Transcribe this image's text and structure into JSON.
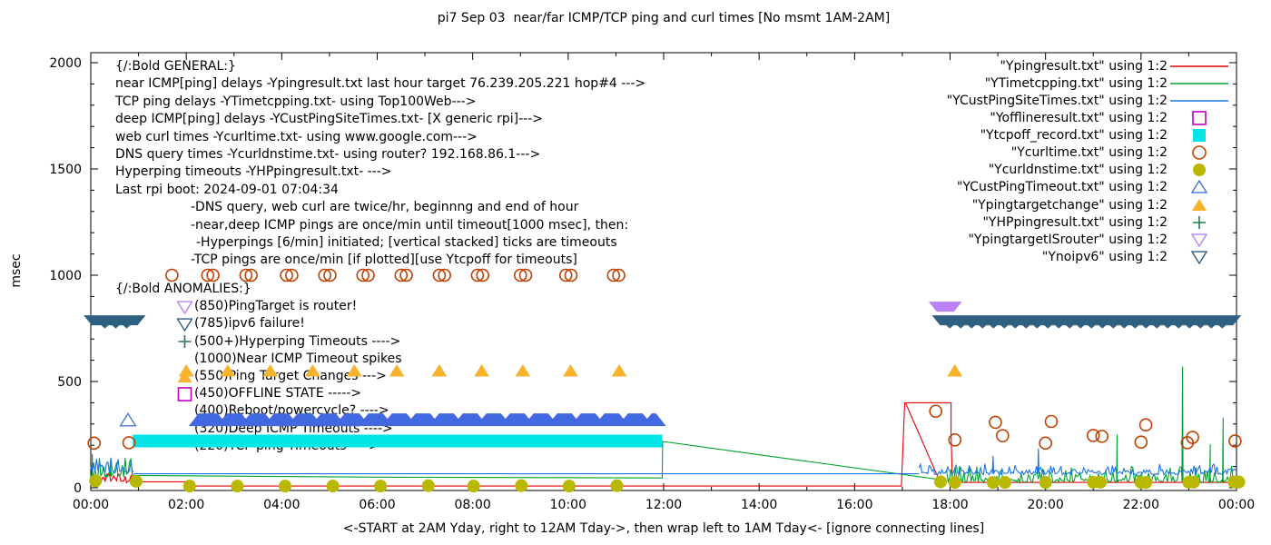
{
  "title": "pi7 Sep 03  near/far ICMP/TCP ping and curl times [No msmt 1AM-2AM]",
  "caption": "<-START at 2AM Yday, right to 12AM Tday->, then wrap left to 1AM Tday<- [ignore connecting lines]",
  "legend": {
    "items": [
      {
        "label": "\"Ypingresult.txt\" using 1:2",
        "swatch": "line",
        "color": "#e60000"
      },
      {
        "label": "\"YTimetcpping.txt\" using 1:2",
        "swatch": "line",
        "color": "#00a330"
      },
      {
        "label": "\"YCustPingSiteTimes.txt\" using 1:2",
        "swatch": "line",
        "color": "#1874e8"
      },
      {
        "label": "\"Yofflineresult.txt\" using 1:2",
        "swatch": "square-open",
        "color": "#bf00bf"
      },
      {
        "label": "\"Ytcpoff_record.txt\" using 1:2",
        "swatch": "square-filled",
        "color": "#00e6e6"
      },
      {
        "label": "\"Ycurltime.txt\" using 1:2",
        "swatch": "circle-open",
        "color": "#c04000"
      },
      {
        "label": "\"Ycurldnstime.txt\" using 1:2",
        "swatch": "circle-filled",
        "color": "#b8b800"
      },
      {
        "label": "\"YCustPingTimeout.txt\" using 1:2",
        "swatch": "tri-up-open",
        "color": "#4878d0"
      },
      {
        "label": "\"Ypingtargetchange\" using 1:2",
        "swatch": "tri-up-filled",
        "color": "#f7b32b"
      },
      {
        "label": "\"YHPpingresult.txt\" using 1:2",
        "swatch": "plus",
        "color": "#1a7a4a"
      },
      {
        "label": "\"YpingtargetISrouter\" using 1:2",
        "swatch": "tri-down-open",
        "color": "#bb80f5"
      },
      {
        "label": "\"Ynoipv6\" using 1:2",
        "swatch": "tri-down-open",
        "color": "#2e607f"
      }
    ]
  },
  "annotations": {
    "general": [
      {
        "text": "{/:Bold GENERAL:}",
        "indent": 0
      },
      {
        "text": "near ICMP[ping] delays -Ypingresult.txt last hour target 76.239.205.221 hop#4 --->",
        "indent": 0
      },
      {
        "text": "TCP ping delays -YTimetcpping.txt- using Top100Web--->",
        "indent": 0
      },
      {
        "text": "deep ICMP[ping] delays -YCustPingSiteTimes.txt- [X generic rpi]--->",
        "indent": 0
      },
      {
        "text": "web curl times -Ycurltime.txt- using www.google.com--->",
        "indent": 0
      },
      {
        "text": "DNS query times -Ycurldnstime.txt- using router? 192.168.86.1--->",
        "indent": 0
      },
      {
        "text": "Hyperping timeouts -YHPpingresult.txt- --->",
        "indent": 0
      },
      {
        "text": "Last rpi boot: 2024-09-01 07:04:34",
        "indent": 0
      },
      {
        "text": "-DNS query, web curl are twice/hr, beginnng and end of hour",
        "indent": 1
      },
      {
        "text": "-near,deep ICMP pings are once/min until timeout[1000 msec], then:",
        "indent": 1
      },
      {
        "text": "-Hyperpings [6/min] initiated; [vertical stacked] ticks are timeouts",
        "indent": 2
      },
      {
        "text": "-TCP pings are once/min [if plotted][use Ytcpoff for timeouts]",
        "indent": 1
      }
    ],
    "anomalies": [
      {
        "text": "{/:Bold ANOMALIES:}",
        "marker": null,
        "color": null
      },
      {
        "text": "(850)PingTarget is router!",
        "marker": "tri-down-open",
        "color": "#bb80f5"
      },
      {
        "text": "(785)ipv6 failure!",
        "marker": "tri-down-open",
        "color": "#2e607f"
      },
      {
        "text": "(500+)Hyperping Timeouts ---->",
        "marker": "plus",
        "color": "#1a7a4a"
      },
      {
        "text": "(1000)Near ICMP Timeout spikes",
        "marker": null,
        "color": null
      },
      {
        "text": "(550)Ping Target Changes --->",
        "marker": "tri-up-filled",
        "color": "#f7b32b"
      },
      {
        "text": "(450)OFFLINE STATE ----->",
        "marker": "square-open",
        "color": "#bf00bf"
      },
      {
        "text": "(400)Reboot/powercycle? ---->",
        "marker": null,
        "color": null
      },
      {
        "text": "(320)Deep ICMP Timeouts ---->",
        "marker": null,
        "color": null
      },
      {
        "text": "(220)TCP ping Timeouts ---->",
        "marker": null,
        "color": null
      }
    ]
  },
  "chart_data": {
    "type": "line",
    "title": "pi7 Sep 03  near/far ICMP/TCP ping and curl times [No msmt 1AM-2AM]",
    "ylabel": "msec",
    "xlabel": "<-START at 2AM Yday, right to 12AM Tday->, then wrap left to 1AM Tday<- [ignore connecting lines]",
    "x_axis": {
      "range_hours": [
        0,
        24
      ],
      "major_tick_every_hours": 2,
      "minor_tick_every_hours": 1,
      "tick_labels": [
        "00:00",
        "02:00",
        "04:00",
        "06:00",
        "08:00",
        "10:00",
        "12:00",
        "14:00",
        "16:00",
        "18:00",
        "20:00",
        "22:00",
        "00:00"
      ]
    },
    "y_axis": {
      "range": [
        0,
        2000
      ],
      "major_tick_every": 500,
      "minor_tick_every": 100,
      "tick_labels": [
        "0",
        "500",
        "1000",
        "1500",
        "2000"
      ]
    },
    "grid": false,
    "legend_position": "top-right-outside-style-column",
    "series": [
      {
        "name": "Ypingresult.txt",
        "kind": "line",
        "color": "#e60000",
        "segments": [
          [
            [
              0.9,
              28
            ],
            [
              2.0,
              28
            ],
            [
              2.05,
              8
            ],
            [
              16.98,
              8
            ],
            [
              17.05,
              400
            ],
            [
              18.02,
              400
            ],
            [
              18.02,
              250
            ],
            [
              18.05,
              25
            ],
            [
              24,
              25
            ]
          ],
          [
            [
              17.07,
              398
            ],
            [
              17.82,
              12
            ]
          ]
        ],
        "noise": [
          {
            "from": 0.0,
            "to": 0.9,
            "base": 28,
            "amp": 35,
            "seed": 7,
            "spikes": []
          }
        ]
      },
      {
        "name": "YTimetcpping.txt",
        "kind": "line",
        "color": "#00a330",
        "segments": [
          [
            [
              0.9,
              58
            ],
            [
              6.0,
              50
            ],
            [
              11.97,
              46
            ],
            [
              11.98,
              218
            ],
            [
              17.9,
              35
            ]
          ]
        ],
        "noise": [
          {
            "from": 0.0,
            "to": 0.9,
            "base": 55,
            "amp": 105,
            "seed": 3,
            "spikes": [
              [
                0.03,
                160
              ],
              [
                0.42,
                120
              ]
            ]
          },
          {
            "from": 17.9,
            "to": 24.0,
            "base": 28,
            "amp": 70,
            "seed": 5,
            "spikes": [
              [
                21.5,
                250
              ],
              [
                22.87,
                570
              ],
              [
                23.45,
                205
              ],
              [
                23.72,
                330
              ]
            ]
          }
        ]
      },
      {
        "name": "YCustPingSiteTimes.txt",
        "kind": "line",
        "color": "#1874e8",
        "segments": [
          [
            [
              0.9,
              66
            ],
            [
              17.35,
              66
            ]
          ]
        ],
        "noise": [
          {
            "from": 0.0,
            "to": 0.9,
            "base": 72,
            "amp": 70,
            "seed": 9,
            "spikes": []
          },
          {
            "from": 17.35,
            "to": 24.0,
            "base": 66,
            "amp": 42,
            "seed": 13,
            "spikes": [
              [
                18.9,
                150
              ],
              [
                19.85,
                185
              ]
            ]
          }
        ]
      }
    ],
    "bars": [
      {
        "name": "Ynoipv6",
        "color": "#2e607f",
        "value": 788,
        "from": -0.15,
        "to": 1.15,
        "height": 11,
        "style": "teeth-bottom"
      },
      {
        "name": "Ynoipv6",
        "color": "#2e607f",
        "value": 788,
        "from": 17.62,
        "to": 24.1,
        "height": 11,
        "style": "teeth-bottom"
      },
      {
        "name": "YpingtargetISrouter",
        "color": "#bb80f5",
        "value": 852,
        "from": 17.55,
        "to": 18.25,
        "height": 11,
        "style": "trapezoid"
      },
      {
        "name": "Ytcpoff_record.txt",
        "color": "#00e6e6",
        "value": 220,
        "from": 0.88,
        "to": 11.97,
        "height": 14,
        "style": "rect"
      },
      {
        "name": "YCustPingTimeout.txt (stacked timeouts)",
        "color": "#4169e1",
        "value": 320,
        "from": 2.05,
        "to": 12.05,
        "height": 14,
        "style": "teeth-top"
      }
    ],
    "markers": [
      {
        "name": "Ycurltime.txt",
        "shape": "circle-open",
        "color": "#c04000",
        "size": 6.5,
        "points": [
          [
            1.7,
            1000
          ],
          [
            2.45,
            1000
          ],
          [
            2.56,
            1000
          ],
          [
            3.25,
            1000
          ],
          [
            3.36,
            1000
          ],
          [
            4.1,
            1000
          ],
          [
            4.21,
            1000
          ],
          [
            4.9,
            1000
          ],
          [
            5.01,
            1000
          ],
          [
            5.7,
            1000
          ],
          [
            5.81,
            1000
          ],
          [
            6.5,
            1000
          ],
          [
            6.61,
            1000
          ],
          [
            7.3,
            1000
          ],
          [
            7.41,
            1000
          ],
          [
            8.1,
            1000
          ],
          [
            8.21,
            1000
          ],
          [
            9.0,
            1000
          ],
          [
            9.11,
            1000
          ],
          [
            9.95,
            1000
          ],
          [
            10.06,
            1000
          ],
          [
            10.95,
            1000
          ],
          [
            11.06,
            1000
          ],
          [
            0.07,
            210
          ],
          [
            0.8,
            212
          ],
          [
            17.7,
            360
          ],
          [
            18.1,
            225
          ],
          [
            18.95,
            308
          ],
          [
            19.1,
            245
          ],
          [
            20.0,
            210
          ],
          [
            20.12,
            312
          ],
          [
            21.0,
            246
          ],
          [
            21.18,
            242
          ],
          [
            22.0,
            215
          ],
          [
            22.1,
            296
          ],
          [
            22.97,
            212
          ],
          [
            23.08,
            237
          ],
          [
            23.97,
            220
          ]
        ]
      },
      {
        "name": "Ycurldnstime.txt",
        "shape": "circle-filled",
        "color": "#b8b800",
        "size": 7,
        "points": [
          [
            0.1,
            32
          ],
          [
            0.95,
            30
          ],
          [
            2.07,
            8
          ],
          [
            3.07,
            8
          ],
          [
            4.07,
            8
          ],
          [
            5.07,
            8
          ],
          [
            6.07,
            8
          ],
          [
            7.07,
            10
          ],
          [
            8.02,
            8
          ],
          [
            9.02,
            10
          ],
          [
            10.02,
            8
          ],
          [
            11.02,
            10
          ],
          [
            17.8,
            28
          ],
          [
            18.1,
            25
          ],
          [
            18.9,
            25
          ],
          [
            19.15,
            25
          ],
          [
            20.0,
            25
          ],
          [
            21.0,
            26
          ],
          [
            21.15,
            26
          ],
          [
            22.0,
            25
          ],
          [
            22.1,
            25
          ],
          [
            23.0,
            26
          ],
          [
            23.1,
            26
          ],
          [
            23.95,
            27
          ],
          [
            24.05,
            27
          ]
        ]
      },
      {
        "name": "Ypingtargetchange",
        "shape": "tri-up-filled",
        "color": "#f7b32b",
        "size": 7.3,
        "points": [
          [
            2.0,
            550
          ],
          [
            2.87,
            550
          ],
          [
            3.76,
            550
          ],
          [
            4.65,
            550
          ],
          [
            5.52,
            550
          ],
          [
            6.41,
            550
          ],
          [
            7.3,
            550
          ],
          [
            8.19,
            550
          ],
          [
            9.05,
            550
          ],
          [
            10.05,
            550
          ],
          [
            11.07,
            550
          ],
          [
            18.1,
            550
          ]
        ]
      },
      {
        "name": "YCustPingTimeout.txt",
        "shape": "tri-up-open",
        "color": "#4878d0",
        "size": 7.3,
        "points": [
          [
            0.78,
            318
          ]
        ]
      }
    ]
  }
}
